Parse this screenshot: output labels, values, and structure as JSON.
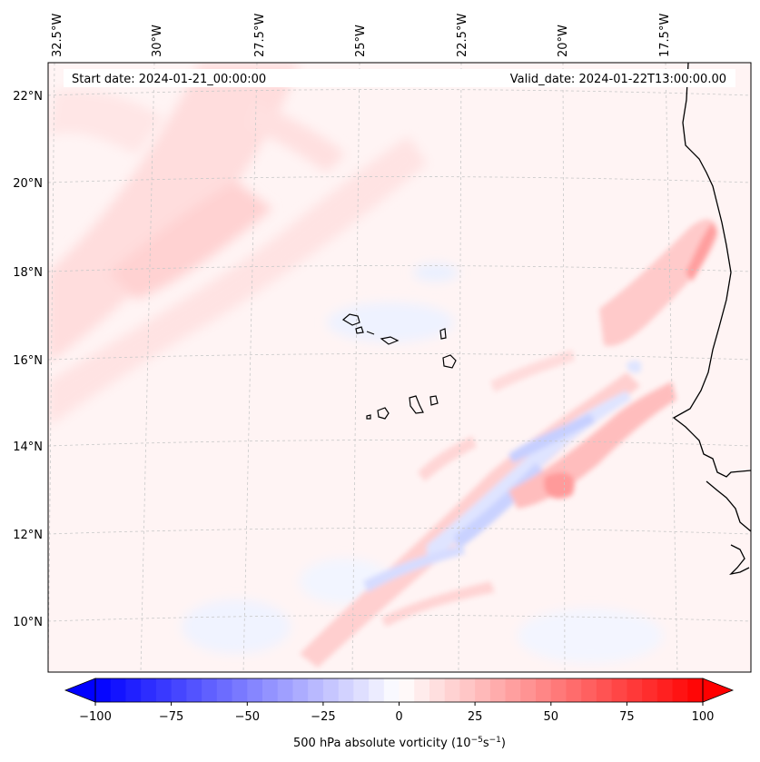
{
  "map": {
    "start_date": "Start date: 2024-01-21_00:00:00",
    "valid_date": "Valid_date: 2024-01-22T13:00:00.00",
    "lon_labels": [
      "32.5°W",
      "30°W",
      "27.5°W",
      "25°W",
      "22.5°W",
      "20°W",
      "17.5°W"
    ],
    "lat_labels": [
      "22°N",
      "20°N",
      "18°N",
      "16°N",
      "14°N",
      "12°N",
      "10°N"
    ]
  },
  "colorbar": {
    "tick_labels": [
      "−100",
      "−75",
      "−50",
      "−25",
      "0",
      "25",
      "50",
      "75",
      "100"
    ],
    "label": "500 hPa absolute vorticity (10",
    "label_exp1": "−5",
    "label_mid": "s",
    "label_exp2": "−1",
    "label_end": ")"
  },
  "colors": {
    "coast": "#000000",
    "grid": "#bbbbbb",
    "min": "#0000ff",
    "max": "#ff0000"
  }
}
